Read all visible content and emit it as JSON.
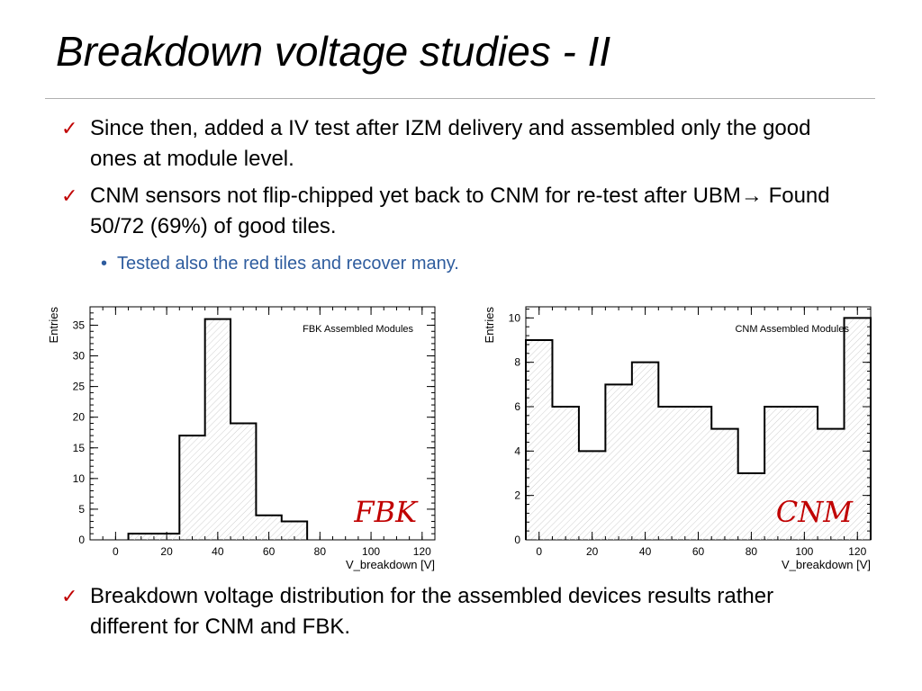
{
  "slide": {
    "title": "Breakdown voltage studies - II",
    "bullets": [
      {
        "mark": "✓",
        "text": "Since then, added a IV test after IZM delivery and assembled only the good ones at module level."
      },
      {
        "mark": "✓",
        "text_a": "CNM sensors not flip-chipped yet back  to CNM for re-test after UBM",
        "arrow": "→",
        "text_b": " Found 50/72 (69%) of good tiles."
      },
      {
        "mark": "✓",
        "text": "Breakdown voltage distribution for the assembled devices results rather different for CNM and FBK."
      }
    ],
    "sub_bullet": {
      "mark": "•",
      "text": "Tested also the red tiles and recover many."
    },
    "accent_color": "#c00000",
    "sub_color": "#2e5c9e"
  },
  "chart_data": [
    {
      "type": "bar",
      "style": "step-histogram",
      "title": "FBK Assembled Modules",
      "tag": "FBK",
      "xlabel": "V_breakdown [V]",
      "ylabel": "Entries",
      "xlim": [
        -10,
        125
      ],
      "ylim": [
        0,
        38
      ],
      "xticks": [
        0,
        20,
        40,
        60,
        80,
        100,
        120
      ],
      "yticks": [
        0,
        5,
        10,
        15,
        20,
        25,
        30,
        35
      ],
      "bin_edges": [
        5,
        15,
        25,
        35,
        45,
        55,
        65,
        75
      ],
      "values": [
        1,
        1,
        17,
        36,
        19,
        4,
        3
      ]
    },
    {
      "type": "bar",
      "style": "step-histogram",
      "title": "CNM Assembled Modules",
      "tag": "CNM",
      "xlabel": "V_breakdown [V]",
      "ylabel": "Entries",
      "xlim": [
        -5,
        125
      ],
      "ylim": [
        0,
        10.5
      ],
      "xticks": [
        0,
        20,
        40,
        60,
        80,
        100,
        120
      ],
      "yticks": [
        0,
        2,
        4,
        6,
        8,
        10
      ],
      "bin_edges": [
        -5,
        5,
        15,
        25,
        35,
        45,
        55,
        65,
        75,
        85,
        95,
        105,
        115,
        125
      ],
      "values": [
        9,
        6,
        4,
        7,
        8,
        6,
        6,
        5,
        3,
        6,
        6,
        5,
        10
      ]
    }
  ]
}
